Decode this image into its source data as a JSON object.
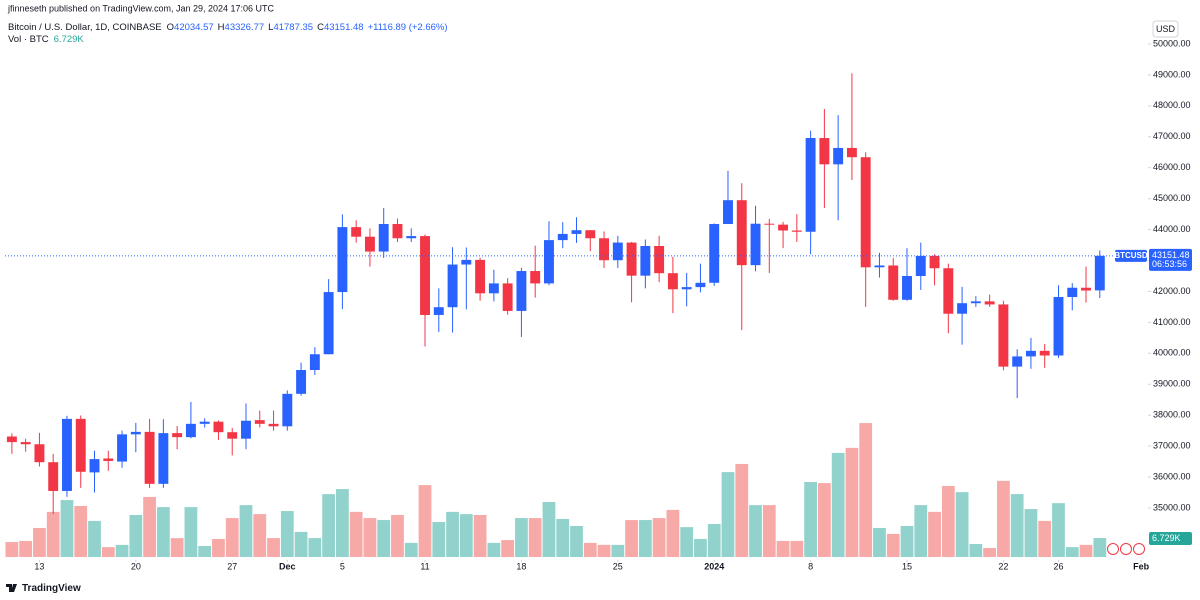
{
  "chart_data": {
    "type": "candlestick",
    "published": "jfinneseth published on TradingView.com, Jan 29, 2024 17:06 UTC",
    "title": "Bitcoin / U.S. Dollar, 1D, COINBASE",
    "ohlc_prefixes": {
      "open": "O",
      "high": "H",
      "low": "L",
      "close": "C"
    },
    "change": "+1116.89 (+2.66%)",
    "colors": {
      "up": "#2962ff",
      "down": "#f23645"
    },
    "open": [
      37310,
      37130,
      37060,
      36480,
      35550,
      37880,
      36150,
      36600,
      36500,
      37380,
      37460,
      35780,
      37420,
      37290,
      37720,
      37790,
      37450,
      37240,
      37840,
      37720,
      37640,
      38690,
      39460,
      39970,
      41980,
      44080,
      43770,
      43290,
      44180,
      43720,
      43790,
      41240,
      41490,
      42870,
      43020,
      41940,
      42260,
      41370,
      42660,
      42260,
      43660,
      43860,
      43980,
      43720,
      43010,
      43580,
      42510,
      43470,
      42590,
      42070,
      42140,
      42280,
      44180,
      44950,
      42850,
      44190,
      44160,
      43970,
      43930,
      46960,
      46110,
      46640,
      46340,
      42780,
      42840,
      41730,
      42500,
      43150,
      42750,
      41280,
      41620,
      41680,
      41580,
      39570,
      39900,
      40080,
      39930,
      41820,
      42120,
      42034.57
    ],
    "high": [
      37410,
      37240,
      37430,
      36750,
      37980,
      37990,
      36850,
      36850,
      37500,
      37750,
      37880,
      37870,
      37650,
      38430,
      37900,
      37830,
      37590,
      38380,
      38150,
      38150,
      38800,
      39700,
      40200,
      42400,
      44490,
      44300,
      44040,
      44700,
      44360,
      44040,
      43840,
      42100,
      43430,
      43420,
      43090,
      42700,
      42430,
      42760,
      43480,
      44270,
      44240,
      44400,
      43980,
      43940,
      43800,
      43600,
      43680,
      43800,
      43120,
      42600,
      42900,
      44200,
      45900,
      45500,
      44770,
      44350,
      44250,
      44500,
      47200,
      47900,
      47700,
      49050,
      46500,
      43250,
      43080,
      43400,
      43580,
      43200,
      42900,
      42150,
      41850,
      41900,
      41700,
      40130,
      40500,
      40300,
      42200,
      42270,
      42800,
      43326.77
    ],
    "low": [
      36750,
      36820,
      36340,
      34800,
      35360,
      35650,
      35500,
      36200,
      36300,
      36800,
      35650,
      35650,
      36900,
      37250,
      37600,
      37200,
      36700,
      36900,
      37600,
      37500,
      37500,
      38630,
      39300,
      39970,
      41430,
      43580,
      42800,
      43080,
      43600,
      43600,
      40220,
      40690,
      40670,
      41420,
      41700,
      41680,
      41250,
      40530,
      41800,
      42200,
      43400,
      43570,
      43300,
      42760,
      42760,
      41650,
      42100,
      42300,
      41300,
      41520,
      41970,
      42180,
      44180,
      40750,
      42650,
      42600,
      43400,
      43600,
      43200,
      44700,
      44300,
      45600,
      41500,
      42450,
      41700,
      41700,
      42050,
      42200,
      40650,
      40280,
      41500,
      41500,
      39450,
      38550,
      39500,
      39530,
      39850,
      41390,
      41640,
      41787.35
    ],
    "close": [
      37130,
      37060,
      36480,
      35550,
      37880,
      36170,
      36580,
      36520,
      37380,
      37460,
      35780,
      37420,
      37290,
      37720,
      37790,
      37450,
      37240,
      37820,
      37720,
      37640,
      38690,
      39460,
      39970,
      41980,
      44080,
      43770,
      43290,
      44180,
      43720,
      43790,
      41240,
      41490,
      42870,
      43020,
      41940,
      42260,
      41370,
      42660,
      42260,
      43660,
      43860,
      43980,
      43720,
      43010,
      43580,
      42510,
      43470,
      42590,
      42070,
      42140,
      42280,
      44180,
      44950,
      42850,
      44190,
      44160,
      43970,
      43930,
      46960,
      46110,
      46640,
      46340,
      42780,
      42840,
      41730,
      42500,
      43150,
      42750,
      41280,
      41620,
      41680,
      41580,
      39570,
      39900,
      40080,
      39930,
      41820,
      42120,
      42030,
      43151.48
    ],
    "ylim": [
      34000,
      51000
    ],
    "yticks": [
      {
        "value": 35000,
        "label": "35000.00"
      },
      {
        "value": 36000,
        "label": "36000.00"
      },
      {
        "value": 37000,
        "label": "37000.00"
      },
      {
        "value": 38000,
        "label": "38000.00"
      },
      {
        "value": 39000,
        "label": "39000.00"
      },
      {
        "value": 40000,
        "label": "40000.00"
      },
      {
        "value": 41000,
        "label": "41000.00"
      },
      {
        "value": 42000,
        "label": "42000.00"
      },
      {
        "value": 43000,
        "label": "43000.00"
      },
      {
        "value": 44000,
        "label": "44000.00"
      },
      {
        "value": 45000,
        "label": "45000.00"
      },
      {
        "value": 46000,
        "label": "46000.00"
      },
      {
        "value": 47000,
        "label": "47000.00"
      },
      {
        "value": 48000,
        "label": "48000.00"
      },
      {
        "value": 49000,
        "label": "49000.00"
      },
      {
        "value": 50000,
        "label": "50000.00"
      }
    ],
    "y_axis_label": "USD",
    "symbol_tag": "BTCUSD",
    "countdown": "06:53:56",
    "xlim": [
      -0.5,
      82.5
    ],
    "xticks": [
      {
        "value": 2,
        "label": "13"
      },
      {
        "value": 9,
        "label": "20"
      },
      {
        "value": 16,
        "label": "27"
      },
      {
        "value": 20,
        "label": "Dec"
      },
      {
        "value": 24,
        "label": "5"
      },
      {
        "value": 30,
        "label": "11"
      },
      {
        "value": 37,
        "label": "18"
      },
      {
        "value": 44,
        "label": "25"
      },
      {
        "value": 51,
        "label": "2024"
      },
      {
        "value": 58,
        "label": "8"
      },
      {
        "value": 65,
        "label": "15"
      },
      {
        "value": 72,
        "label": "22"
      },
      {
        "value": 76,
        "label": "26"
      },
      {
        "value": 82,
        "label": "Feb"
      }
    ],
    "volume": {
      "name": "Vol · BTC",
      "colors": {
        "up": "#92d2cc",
        "down": "#f7a9a7",
        "tag": "#26a69a"
      },
      "ylim": [
        0,
        50000
      ],
      "values": [
        5300,
        5700,
        10300,
        16000,
        20200,
        18100,
        12800,
        3500,
        4300,
        14900,
        21300,
        17700,
        6700,
        17700,
        3900,
        6400,
        13800,
        18400,
        15200,
        6700,
        16300,
        8900,
        6700,
        22300,
        24100,
        16000,
        13800,
        13100,
        14900,
        5000,
        25500,
        12400,
        16000,
        15200,
        14900,
        5000,
        6000,
        13800,
        13800,
        19500,
        13500,
        11000,
        5000,
        4300,
        4300,
        13100,
        13100,
        13800,
        16700,
        10600,
        6400,
        11700,
        30100,
        33000,
        18400,
        18400,
        5700,
        5700,
        26600,
        26200,
        36900,
        38700,
        47500,
        10300,
        8200,
        11000,
        18400,
        16000,
        25200,
        23000,
        4600,
        3200,
        27000,
        22300,
        17000,
        12800,
        19100,
        3500,
        4300,
        6729
      ],
      "value_labels": [
        null,
        null,
        null,
        null,
        null,
        null,
        null,
        null,
        null,
        null,
        null,
        null,
        null,
        null,
        null,
        null,
        null,
        null,
        null,
        null,
        null,
        null,
        null,
        null,
        null,
        null,
        null,
        null,
        null,
        null,
        null,
        null,
        null,
        null,
        null,
        null,
        null,
        null,
        null,
        null,
        null,
        null,
        null,
        null,
        null,
        null,
        null,
        null,
        null,
        null,
        null,
        null,
        null,
        null,
        null,
        null,
        null,
        null,
        null,
        null,
        null,
        null,
        null,
        null,
        null,
        null,
        null,
        null,
        null,
        null,
        null,
        null,
        null,
        null,
        null,
        null,
        null,
        null,
        null,
        "6.729K"
      ]
    },
    "brand": "TradingView"
  }
}
